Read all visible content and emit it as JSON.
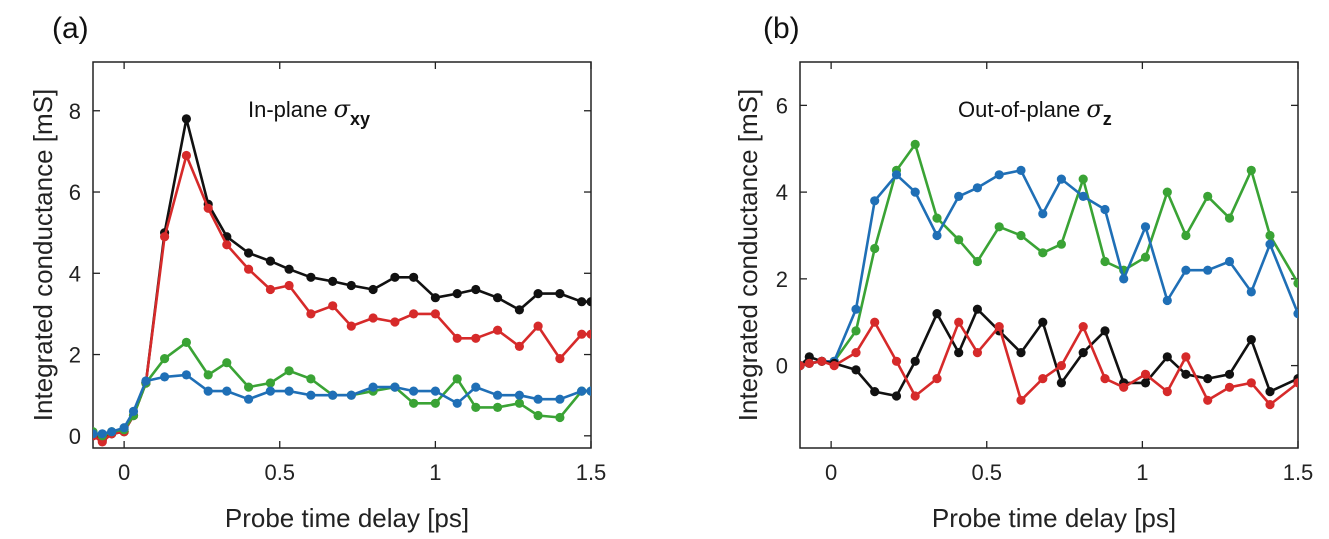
{
  "chart_data": [
    {
      "type": "line",
      "panel_label": "(a)",
      "annotation": {
        "text": "In-plane ",
        "symbol": "σ",
        "subscript": "xy"
      },
      "xlabel": "Probe time delay [ps]",
      "ylabel": "Integrated conductance [mS]",
      "xlim": [
        -0.1,
        1.5
      ],
      "ylim": [
        -0.3,
        9.2
      ],
      "xticks": [
        0,
        0.5,
        1,
        1.5
      ],
      "xtick_labels": [
        "0",
        "0.5",
        "1",
        "1.5"
      ],
      "yticks": [
        0,
        2,
        4,
        6,
        8
      ],
      "ytick_labels": [
        "0",
        "2",
        "4",
        "6",
        "8"
      ],
      "series": [
        {
          "name": "black",
          "color": "#111111",
          "x": [
            -0.1,
            -0.07,
            -0.04,
            0,
            0.03,
            0.07,
            0.13,
            0.2,
            0.27,
            0.33,
            0.4,
            0.47,
            0.53,
            0.6,
            0.67,
            0.73,
            0.8,
            0.87,
            0.93,
            1,
            1.07,
            1.13,
            1.2,
            1.27,
            1.33,
            1.4,
            1.47,
            1.5
          ],
          "y": [
            0,
            -0.1,
            0.05,
            0.1,
            0.5,
            1.3,
            5.0,
            7.8,
            5.7,
            4.9,
            4.5,
            4.3,
            4.1,
            3.9,
            3.8,
            3.7,
            3.6,
            3.9,
            3.9,
            3.4,
            3.5,
            3.6,
            3.4,
            3.1,
            3.5,
            3.5,
            3.3,
            3.3
          ]
        },
        {
          "name": "red",
          "color": "#d62a2a",
          "x": [
            -0.1,
            -0.07,
            -0.04,
            0,
            0.03,
            0.07,
            0.13,
            0.2,
            0.27,
            0.33,
            0.4,
            0.47,
            0.53,
            0.6,
            0.67,
            0.73,
            0.8,
            0.87,
            0.93,
            1,
            1.07,
            1.13,
            1.2,
            1.27,
            1.33,
            1.4,
            1.47,
            1.5
          ],
          "y": [
            0,
            -0.15,
            0.05,
            0.1,
            0.5,
            1.3,
            4.9,
            6.9,
            5.6,
            4.7,
            4.1,
            3.6,
            3.7,
            3.0,
            3.2,
            2.7,
            2.9,
            2.8,
            3.0,
            3.0,
            2.4,
            2.4,
            2.6,
            2.2,
            2.7,
            1.9,
            2.5,
            2.5
          ]
        },
        {
          "name": "green",
          "color": "#3aa335",
          "x": [
            -0.1,
            -0.07,
            -0.04,
            0,
            0.03,
            0.07,
            0.13,
            0.2,
            0.27,
            0.33,
            0.4,
            0.47,
            0.53,
            0.6,
            0.67,
            0.73,
            0.8,
            0.87,
            0.93,
            1,
            1.07,
            1.13,
            1.2,
            1.27,
            1.33,
            1.4,
            1.47,
            1.5
          ],
          "y": [
            0.1,
            0,
            0.1,
            0.15,
            0.5,
            1.3,
            1.9,
            2.3,
            1.5,
            1.8,
            1.2,
            1.3,
            1.6,
            1.4,
            1.0,
            1.0,
            1.1,
            1.2,
            0.8,
            0.8,
            1.4,
            0.7,
            0.7,
            0.8,
            0.5,
            0.45,
            1.1,
            1.1
          ]
        },
        {
          "name": "blue",
          "color": "#1f6fb6",
          "x": [
            -0.1,
            -0.07,
            -0.04,
            0,
            0.03,
            0.07,
            0.13,
            0.2,
            0.27,
            0.33,
            0.4,
            0.47,
            0.53,
            0.6,
            0.67,
            0.73,
            0.8,
            0.87,
            0.93,
            1,
            1.07,
            1.13,
            1.2,
            1.27,
            1.33,
            1.4,
            1.47,
            1.5
          ],
          "y": [
            0.05,
            0.05,
            0.1,
            0.2,
            0.6,
            1.35,
            1.45,
            1.5,
            1.1,
            1.1,
            0.9,
            1.1,
            1.1,
            1.0,
            1.0,
            1.0,
            1.2,
            1.2,
            1.1,
            1.1,
            0.8,
            1.2,
            1.0,
            1.0,
            0.9,
            0.9,
            1.1,
            1.1
          ]
        }
      ]
    },
    {
      "type": "line",
      "panel_label": "(b)",
      "annotation": {
        "text": "Out-of-plane ",
        "symbol": "σ",
        "subscript": "z"
      },
      "xlabel": "Probe time delay [ps]",
      "ylabel": "Integrated conductance [mS]",
      "xlim": [
        -0.1,
        1.5
      ],
      "ylim": [
        -1.9,
        7.0
      ],
      "xticks": [
        0,
        0.5,
        1,
        1.5
      ],
      "xtick_labels": [
        "0",
        "0.5",
        "1",
        "1.5"
      ],
      "yticks": [
        0,
        2,
        4,
        6
      ],
      "ytick_labels": [
        "0",
        "2",
        "4",
        "6"
      ],
      "series": [
        {
          "name": "green",
          "color": "#3aa335",
          "x": [
            -0.1,
            -0.07,
            -0.03,
            0.01,
            0.08,
            0.14,
            0.21,
            0.27,
            0.34,
            0.41,
            0.47,
            0.54,
            0.61,
            0.68,
            0.74,
            0.81,
            0.88,
            0.94,
            1.01,
            1.08,
            1.14,
            1.21,
            1.28,
            1.35,
            1.41,
            1.5
          ],
          "y": [
            0,
            0.05,
            0.1,
            0.1,
            0.8,
            2.7,
            4.5,
            5.1,
            3.4,
            2.9,
            2.4,
            3.2,
            3.0,
            2.6,
            2.8,
            4.3,
            2.4,
            2.2,
            2.5,
            4.0,
            3.0,
            3.9,
            3.4,
            4.5,
            3.0,
            1.9
          ]
        },
        {
          "name": "blue",
          "color": "#1f6fb6",
          "x": [
            -0.1,
            -0.07,
            -0.03,
            0.01,
            0.08,
            0.14,
            0.21,
            0.27,
            0.34,
            0.41,
            0.47,
            0.54,
            0.61,
            0.68,
            0.74,
            0.81,
            0.88,
            0.94,
            1.01,
            1.08,
            1.14,
            1.21,
            1.28,
            1.35,
            1.41,
            1.5
          ],
          "y": [
            0,
            0.05,
            0.1,
            0.1,
            1.3,
            3.8,
            4.4,
            4.0,
            3.0,
            3.9,
            4.1,
            4.4,
            4.5,
            3.5,
            4.3,
            3.9,
            3.6,
            2.0,
            3.2,
            1.5,
            2.2,
            2.2,
            2.4,
            1.7,
            2.8,
            1.2
          ]
        },
        {
          "name": "black",
          "color": "#111111",
          "x": [
            -0.1,
            -0.07,
            -0.03,
            0.01,
            0.08,
            0.14,
            0.21,
            0.27,
            0.34,
            0.41,
            0.47,
            0.54,
            0.61,
            0.68,
            0.74,
            0.81,
            0.88,
            0.94,
            1.01,
            1.08,
            1.14,
            1.21,
            1.28,
            1.35,
            1.41,
            1.5
          ],
          "y": [
            0,
            0.2,
            0.1,
            0.05,
            -0.1,
            -0.6,
            -0.7,
            0.1,
            1.2,
            0.3,
            1.3,
            0.8,
            0.3,
            1.0,
            -0.4,
            0.3,
            0.8,
            -0.4,
            -0.4,
            0.2,
            -0.2,
            -0.3,
            -0.2,
            0.6,
            -0.6,
            -0.3
          ]
        },
        {
          "name": "red",
          "color": "#d62a2a",
          "x": [
            -0.1,
            -0.07,
            -0.03,
            0.01,
            0.08,
            0.14,
            0.21,
            0.27,
            0.34,
            0.41,
            0.47,
            0.54,
            0.61,
            0.68,
            0.74,
            0.81,
            0.88,
            0.94,
            1.01,
            1.08,
            1.14,
            1.21,
            1.28,
            1.35,
            1.41,
            1.5
          ],
          "y": [
            0,
            0.05,
            0.1,
            0.0,
            0.3,
            1.0,
            0.1,
            -0.7,
            -0.3,
            1.0,
            0.3,
            0.9,
            -0.8,
            -0.3,
            0.0,
            0.9,
            -0.3,
            -0.5,
            -0.2,
            -0.6,
            0.2,
            -0.8,
            -0.5,
            -0.4,
            -0.9,
            -0.4
          ]
        }
      ]
    }
  ]
}
